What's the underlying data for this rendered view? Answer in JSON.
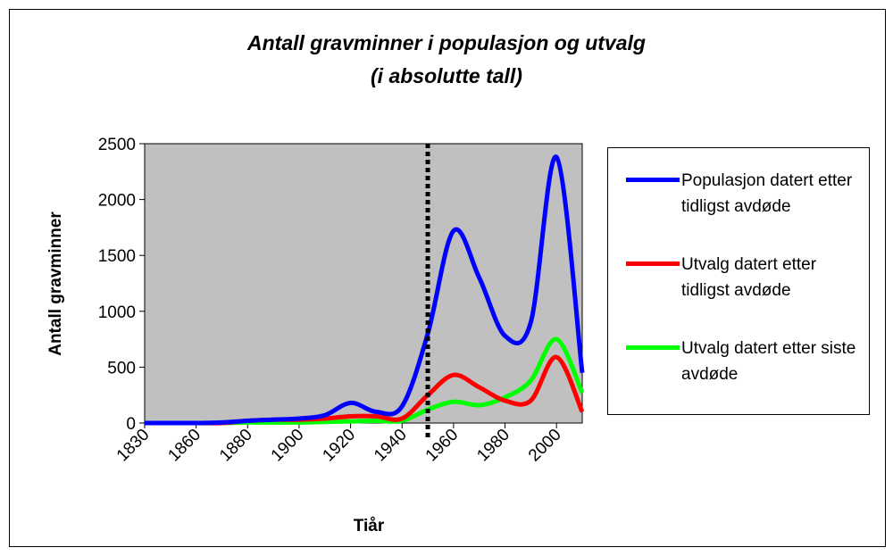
{
  "chart_data": {
    "type": "line",
    "title": "Antall gravminner i populasjon og  utvalg",
    "subtitle": "(i absolutte tall)",
    "x_label": "Tiår",
    "y_label": "Antall gravminner",
    "categories": [
      "1830",
      null,
      "1860",
      null,
      "1880",
      null,
      "1900",
      null,
      "1920",
      null,
      "1940",
      null,
      "1960",
      null,
      "1980",
      null,
      "2000",
      null
    ],
    "series": [
      {
        "name": "Populasjon datert etter tidligst avdøde",
        "color": "#0000ff",
        "values": [
          0,
          0,
          0,
          5,
          20,
          30,
          40,
          70,
          180,
          100,
          150,
          800,
          1720,
          1300,
          780,
          900,
          2380,
          450
        ]
      },
      {
        "name": "Utvalg datert etter tidligst avdøde",
        "color": "#ff0000",
        "values": [
          0,
          0,
          0,
          0,
          20,
          30,
          30,
          40,
          60,
          60,
          40,
          250,
          430,
          320,
          200,
          200,
          590,
          100
        ]
      },
      {
        "name": "Utvalg datert etter siste avdøde",
        "color": "#00ff00",
        "values": [
          0,
          0,
          0,
          0,
          5,
          5,
          5,
          10,
          15,
          20,
          20,
          120,
          190,
          160,
          230,
          380,
          750,
          270
        ]
      }
    ],
    "reference_line": {
      "x_index": 11
    },
    "ylim": [
      0,
      2500
    ],
    "yticks": [
      0,
      500,
      1000,
      1500,
      2000,
      2500
    ],
    "plot_background": "#c0c0c0",
    "legend": "right"
  }
}
